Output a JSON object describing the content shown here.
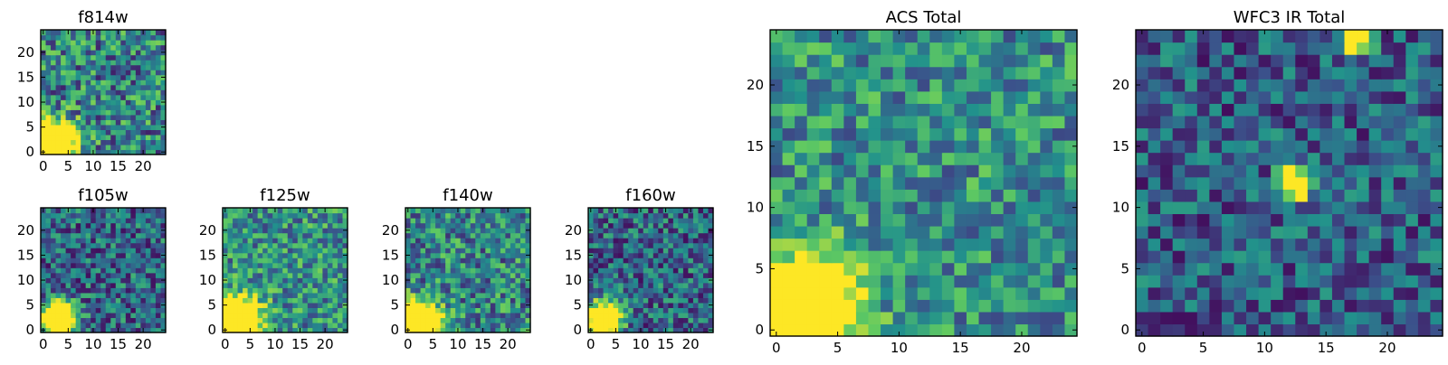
{
  "figure": {
    "background": "#ffffff",
    "colormap": "viridis",
    "colormap_stops": [
      "#440154",
      "#3b528b",
      "#21918c",
      "#5ec962",
      "#fde725"
    ]
  },
  "chart_data": [
    {
      "type": "heatmap",
      "title": "f814w",
      "xlabel": "",
      "ylabel": "",
      "grid_size": [
        25,
        25
      ],
      "xlim": [
        -0.5,
        24.5
      ],
      "ylim": [
        -0.5,
        24.5
      ],
      "xticks": [
        0,
        5,
        10,
        15,
        20
      ],
      "yticks": [
        0,
        5,
        10,
        15,
        20
      ],
      "bright_spots": [
        {
          "x": 2.5,
          "y": 2.0,
          "sigma": 2.8,
          "peak": 1.0
        }
      ],
      "background_level": 0.45,
      "noise": 0.35,
      "seed": 11
    },
    {
      "type": "heatmap",
      "title": "f105w",
      "xlabel": "",
      "ylabel": "",
      "grid_size": [
        25,
        25
      ],
      "xlim": [
        -0.5,
        24.5
      ],
      "ylim": [
        -0.5,
        24.5
      ],
      "xticks": [
        0,
        5,
        10,
        15,
        20
      ],
      "yticks": [
        0,
        5,
        10,
        15,
        20
      ],
      "bright_spots": [
        {
          "x": 3.0,
          "y": 2.5,
          "sigma": 2.2,
          "peak": 1.0
        }
      ],
      "background_level": 0.34,
      "noise": 0.3,
      "seed": 23
    },
    {
      "type": "heatmap",
      "title": "f125w",
      "xlabel": "",
      "ylabel": "",
      "grid_size": [
        25,
        25
      ],
      "xlim": [
        -0.5,
        24.5
      ],
      "ylim": [
        -0.5,
        24.5
      ],
      "xticks": [
        0,
        5,
        10,
        15,
        20
      ],
      "yticks": [
        0,
        5,
        10,
        15,
        20
      ],
      "bright_spots": [
        {
          "x": 2.5,
          "y": 2.0,
          "sigma": 3.0,
          "peak": 1.0
        }
      ],
      "background_level": 0.5,
      "noise": 0.3,
      "seed": 37
    },
    {
      "type": "heatmap",
      "title": "f140w",
      "xlabel": "",
      "ylabel": "",
      "grid_size": [
        25,
        25
      ],
      "xlim": [
        -0.5,
        24.5
      ],
      "ylim": [
        -0.5,
        24.5
      ],
      "xticks": [
        0,
        5,
        10,
        15,
        20
      ],
      "yticks": [
        0,
        5,
        10,
        15,
        20
      ],
      "bright_spots": [
        {
          "x": 2.5,
          "y": 1.5,
          "sigma": 2.7,
          "peak": 1.0
        }
      ],
      "background_level": 0.46,
      "noise": 0.32,
      "seed": 51
    },
    {
      "type": "heatmap",
      "title": "f160w",
      "xlabel": "",
      "ylabel": "",
      "grid_size": [
        25,
        25
      ],
      "xlim": [
        -0.5,
        24.5
      ],
      "ylim": [
        -0.5,
        24.5
      ],
      "xticks": [
        0,
        5,
        10,
        15,
        20
      ],
      "yticks": [
        0,
        5,
        10,
        15,
        20
      ],
      "bright_spots": [
        {
          "x": 2.5,
          "y": 2.0,
          "sigma": 2.3,
          "peak": 1.0
        }
      ],
      "background_level": 0.34,
      "noise": 0.3,
      "seed": 67
    },
    {
      "type": "heatmap",
      "title": "ACS Total",
      "xlabel": "",
      "ylabel": "",
      "grid_size": [
        25,
        25
      ],
      "xlim": [
        -0.5,
        24.5
      ],
      "ylim": [
        -0.5,
        24.5
      ],
      "xticks": [
        0,
        5,
        10,
        15,
        20
      ],
      "yticks": [
        0,
        5,
        10,
        15,
        20
      ],
      "bright_spots": [
        {
          "x": 2.5,
          "y": 2.0,
          "sigma": 2.6,
          "peak": 1.0
        }
      ],
      "background_level": 0.5,
      "noise": 0.28,
      "seed": 83
    },
    {
      "type": "heatmap",
      "title": "WFC3 IR Total",
      "xlabel": "",
      "ylabel": "",
      "grid_size": [
        25,
        25
      ],
      "xlim": [
        -0.5,
        24.5
      ],
      "ylim": [
        -0.5,
        24.5
      ],
      "xticks": [
        0,
        5,
        10,
        15,
        20
      ],
      "yticks": [
        0,
        5,
        10,
        15,
        20
      ],
      "bright_spots": [
        {
          "x": 12.5,
          "y": 12.0,
          "sigma": 0.9,
          "peak": 0.9
        },
        {
          "x": 17.5,
          "y": 24.0,
          "sigma": 0.9,
          "peak": 0.9
        }
      ],
      "background_level": 0.3,
      "noise": 0.26,
      "seed": 97
    }
  ]
}
